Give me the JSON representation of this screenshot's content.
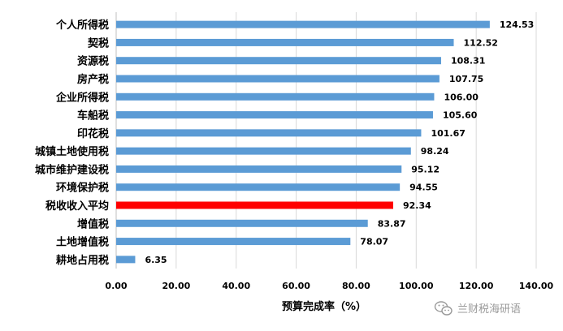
{
  "colors": {
    "bar": "#5B9BD5",
    "highlight_bar": "#FF0000",
    "highlight_label": "#FF0000",
    "grid": "#D9D9D9",
    "axis": "#BFBFBF",
    "text": "#000000",
    "watermark": "#9A9A9A"
  },
  "watermark": {
    "text": "兰财税海研语",
    "icon": "wechat-icon"
  },
  "chart_data": {
    "type": "bar",
    "orientation": "horizontal",
    "categories": [
      "个人所得税",
      "契税",
      "资源税",
      "房产税",
      "企业所得税",
      "车船税",
      "印花税",
      "城镇土地使用税",
      "城市维护建设税",
      "环境保护税",
      "税收收入平均",
      "增值税",
      "土地增值税",
      "耕地占用税"
    ],
    "values": [
      124.53,
      112.52,
      108.31,
      107.75,
      106.0,
      105.6,
      101.67,
      98.24,
      95.12,
      94.55,
      92.34,
      83.87,
      78.07,
      6.35
    ],
    "value_labels": [
      "124.53",
      "112.52",
      "108.31",
      "107.75",
      "106.00",
      "105.60",
      "101.67",
      "98.24",
      "95.12",
      "94.55",
      "92.34",
      "83.87",
      "78.07",
      "6.35"
    ],
    "highlight_index": 10,
    "xlim": [
      0,
      140
    ],
    "xticks": [
      0,
      20,
      40,
      60,
      80,
      100,
      120,
      140
    ],
    "xtick_labels": [
      "0.00",
      "20.00",
      "40.00",
      "60.00",
      "80.00",
      "100.00",
      "120.00",
      "140.00"
    ],
    "xlabel": "预算完成率（%）",
    "ylabel": "",
    "title": "",
    "grid": true,
    "legend": "none"
  }
}
